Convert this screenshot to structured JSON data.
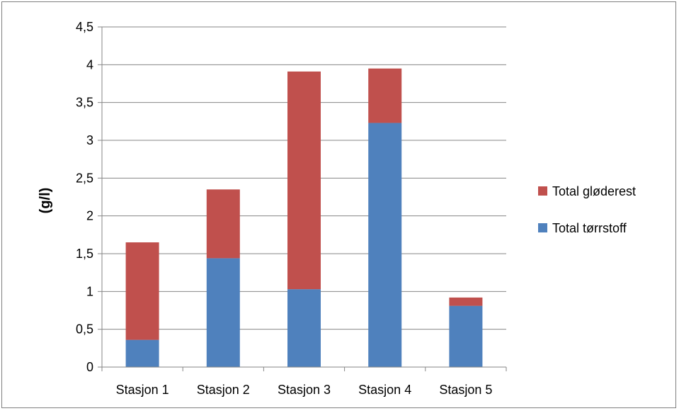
{
  "chart_data": {
    "type": "bar",
    "stacked": true,
    "categories": [
      "Stasjon 1",
      "Stasjon 2",
      "Stasjon 3",
      "Stasjon 4",
      "Stasjon 5"
    ],
    "series": [
      {
        "name": "Total tørrstoff",
        "color": "#4f81bd",
        "values": [
          0.36,
          1.44,
          1.03,
          3.23,
          0.81
        ]
      },
      {
        "name": "Total gløderest",
        "color": "#c0504d",
        "values": [
          1.29,
          0.91,
          2.88,
          0.72,
          0.11
        ]
      }
    ],
    "title": "",
    "xlabel": "",
    "ylabel": "(g/l)",
    "ylim": [
      0,
      4.5
    ],
    "yticks": [
      0,
      0.5,
      1,
      1.5,
      2,
      2.5,
      3,
      3.5,
      4,
      4.5
    ],
    "ytick_labels": [
      "0",
      "0,5",
      "1",
      "1,5",
      "2",
      "2,5",
      "3",
      "3,5",
      "4",
      "4,5"
    ],
    "grid": true,
    "legend_position": "right",
    "legend_order": [
      "Total gløderest",
      "Total tørrstoff"
    ]
  }
}
